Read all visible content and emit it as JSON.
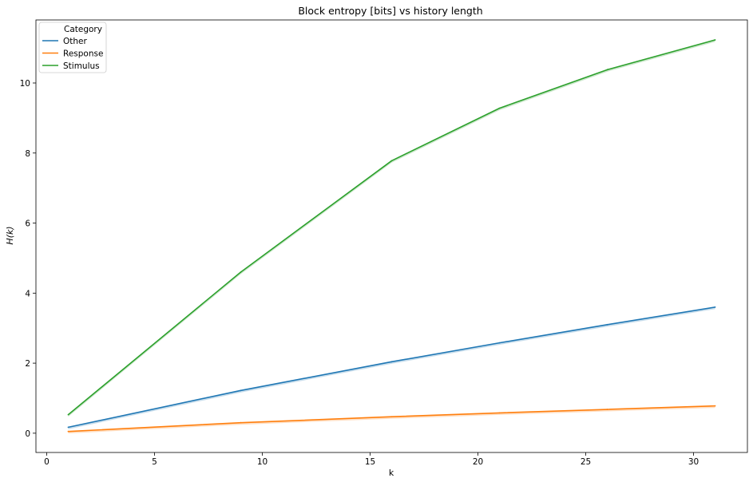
{
  "chart_data": {
    "type": "line",
    "title": "Block entropy [bits] vs history length",
    "xlabel": "k",
    "ylabel": "H(k)",
    "xlim": [
      -0.5,
      32.5
    ],
    "ylim": [
      -0.55,
      11.8
    ],
    "xticks": [
      0,
      5,
      10,
      15,
      20,
      25,
      30
    ],
    "yticks": [
      0,
      2,
      4,
      6,
      8,
      10
    ],
    "grid": false,
    "legend": {
      "title": "Category",
      "placement": "top-left"
    },
    "x": [
      1,
      9,
      16,
      21,
      26,
      31
    ],
    "series": [
      {
        "name": "Other",
        "color": "#1f77b4",
        "values": [
          0.17,
          1.22,
          2.04,
          2.58,
          3.1,
          3.6
        ]
      },
      {
        "name": "Response",
        "color": "#ff7f0e",
        "values": [
          0.05,
          0.3,
          0.47,
          0.58,
          0.68,
          0.78
        ]
      },
      {
        "name": "Stimulus",
        "color": "#2ca02c",
        "values": [
          0.53,
          4.6,
          7.78,
          9.28,
          10.38,
          11.23
        ]
      }
    ]
  }
}
